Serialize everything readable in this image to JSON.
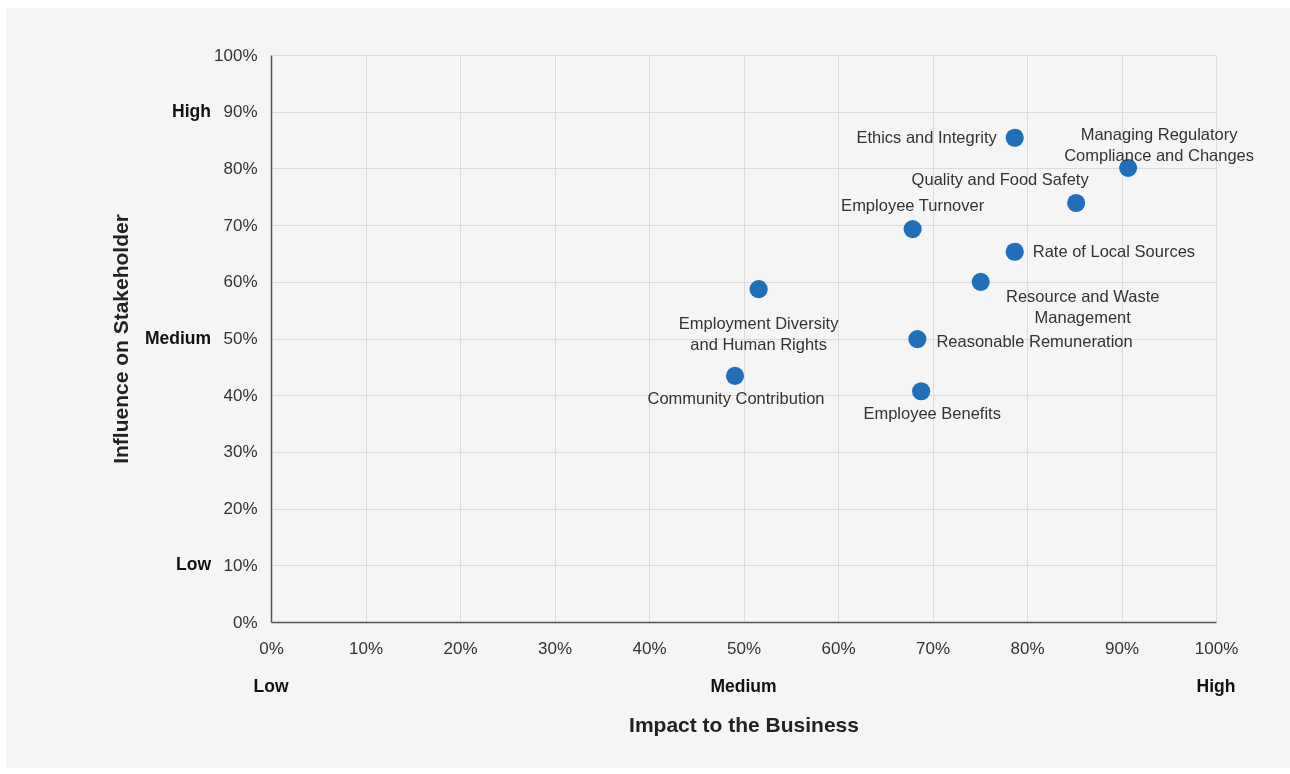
{
  "chart_data": {
    "type": "scatter",
    "xlabel": "Impact to the Business",
    "ylabel": "Influence on Stakeholder",
    "x": [
      78.7,
      90.7,
      85.2,
      67.9,
      78.7,
      75.1,
      51.6,
      68.4,
      49.1,
      68.8
    ],
    "series": [
      {
        "color": "#1f6fba",
        "values": [
          85.4,
          80.1,
          73.9,
          69.3,
          65.3,
          60.0,
          58.7,
          49.9,
          43.4,
          40.7
        ]
      }
    ],
    "marker": "circle",
    "grid": true,
    "xlim": [
      0,
      100
    ],
    "ylim": [
      0,
      100
    ],
    "xticks": [
      {
        "value": 0,
        "label": "0%"
      },
      {
        "value": 10,
        "label": "10%"
      },
      {
        "value": 20,
        "label": "20%"
      },
      {
        "value": 30,
        "label": "30%"
      },
      {
        "value": 40,
        "label": "40%"
      },
      {
        "value": 50,
        "label": "50%"
      },
      {
        "value": 60,
        "label": "60%"
      },
      {
        "value": 70,
        "label": "70%"
      },
      {
        "value": 80,
        "label": "80%"
      },
      {
        "value": 90,
        "label": "90%"
      },
      {
        "value": 100,
        "label": "100%"
      }
    ],
    "yticks": [
      {
        "value": 0,
        "label": "0%"
      },
      {
        "value": 10,
        "label": "10%"
      },
      {
        "value": 20,
        "label": "20%"
      },
      {
        "value": 30,
        "label": "30%"
      },
      {
        "value": 40,
        "label": "40%"
      },
      {
        "value": 50,
        "label": "50%"
      },
      {
        "value": 60,
        "label": "60%"
      },
      {
        "value": 70,
        "label": "70%"
      },
      {
        "value": 80,
        "label": "80%"
      },
      {
        "value": 90,
        "label": "90%"
      },
      {
        "value": 100,
        "label": "100%"
      }
    ],
    "annotations": [
      {
        "text": "Ethics and Integrity",
        "x": 78.7,
        "y": 85.4
      },
      {
        "text": "Managing Regulatory\nCompliance and Changes",
        "x": 90.7,
        "y": 80.1
      },
      {
        "text": "Quality and Food Safety",
        "x": 85.2,
        "y": 73.9
      },
      {
        "text": "Employee Turnover",
        "x": 67.9,
        "y": 69.3
      },
      {
        "text": "Rate of Local Sources",
        "x": 78.7,
        "y": 65.3
      },
      {
        "text": "Resource and Waste\nManagement",
        "x": 75.1,
        "y": 60.0
      },
      {
        "text": "Employment Diversity\nand Human Rights",
        "x": 51.6,
        "y": 58.7
      },
      {
        "text": "Reasonable Remuneration",
        "x": 68.4,
        "y": 49.9
      },
      {
        "text": "Community Contribution",
        "x": 49.1,
        "y": 43.4
      },
      {
        "text": "Employee Benefits",
        "x": 68.8,
        "y": 40.7
      },
      "Low",
      "Medium",
      "High",
      "Low",
      "Medium",
      "High"
    ]
  }
}
